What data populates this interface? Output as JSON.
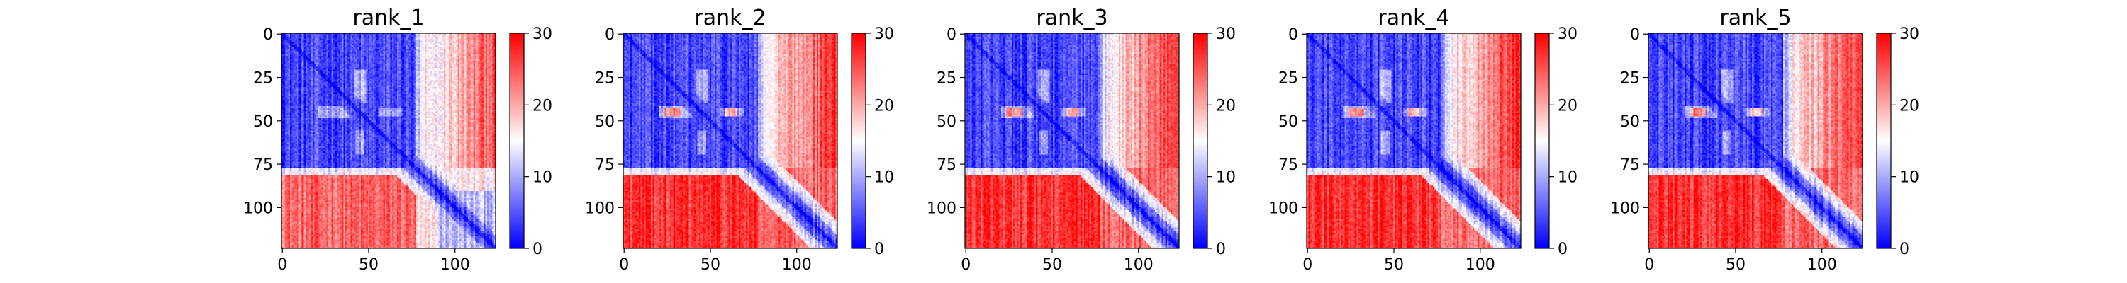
{
  "figure": {
    "panels_count": 5
  },
  "chart_data": [
    {
      "type": "heatmap",
      "title": "rank_1",
      "xlabel": "",
      "ylabel": "",
      "x_ticks": [
        0,
        50,
        100
      ],
      "y_ticks": [
        0,
        25,
        50,
        75,
        100
      ],
      "xlim": [
        0,
        124
      ],
      "ylim": [
        124,
        0
      ],
      "colorbar": {
        "min": 0,
        "max": 30,
        "ticks": [
          0,
          10,
          20,
          30
        ],
        "colormap": "bwr"
      },
      "colors": {
        "low": "#0000ff",
        "mid": "#ffffff",
        "high": "#ff0000"
      },
      "matrix_size": 124,
      "segment_bounds": [
        0,
        45,
        78,
        124
      ],
      "values_description": "Predicted aligned error matrix; blue near-diagonal blocks (0-78), red off-diagonal beyond residue ~80"
    },
    {
      "type": "heatmap",
      "title": "rank_2",
      "xlabel": "",
      "ylabel": "",
      "x_ticks": [
        0,
        50,
        100
      ],
      "y_ticks": [
        0,
        25,
        50,
        75,
        100
      ],
      "xlim": [
        0,
        124
      ],
      "ylim": [
        124,
        0
      ],
      "colorbar": {
        "min": 0,
        "max": 30,
        "ticks": [
          0,
          10,
          20,
          30
        ],
        "colormap": "bwr"
      },
      "colors": {
        "low": "#0000ff",
        "mid": "#ffffff",
        "high": "#ff0000"
      },
      "matrix_size": 124,
      "segment_bounds": [
        0,
        45,
        78,
        124
      ]
    },
    {
      "type": "heatmap",
      "title": "rank_3",
      "xlabel": "",
      "ylabel": "",
      "x_ticks": [
        0,
        50,
        100
      ],
      "y_ticks": [
        0,
        25,
        50,
        75,
        100
      ],
      "xlim": [
        0,
        124
      ],
      "ylim": [
        124,
        0
      ],
      "colorbar": {
        "min": 0,
        "max": 30,
        "ticks": [
          0,
          10,
          20,
          30
        ],
        "colormap": "bwr"
      },
      "colors": {
        "low": "#0000ff",
        "mid": "#ffffff",
        "high": "#ff0000"
      },
      "matrix_size": 124,
      "segment_bounds": [
        0,
        45,
        78,
        124
      ]
    },
    {
      "type": "heatmap",
      "title": "rank_4",
      "xlabel": "",
      "ylabel": "",
      "x_ticks": [
        0,
        50,
        100
      ],
      "y_ticks": [
        0,
        25,
        50,
        75,
        100
      ],
      "xlim": [
        0,
        124
      ],
      "ylim": [
        124,
        0
      ],
      "colorbar": {
        "min": 0,
        "max": 30,
        "ticks": [
          0,
          10,
          20,
          30
        ],
        "colormap": "bwr"
      },
      "colors": {
        "low": "#0000ff",
        "mid": "#ffffff",
        "high": "#ff0000"
      },
      "matrix_size": 124,
      "segment_bounds": [
        0,
        45,
        78,
        124
      ]
    },
    {
      "type": "heatmap",
      "title": "rank_5",
      "xlabel": "",
      "ylabel": "",
      "x_ticks": [
        0,
        50,
        100
      ],
      "y_ticks": [
        0,
        25,
        50,
        75,
        100
      ],
      "xlim": [
        0,
        124
      ],
      "ylim": [
        124,
        0
      ],
      "colorbar": {
        "min": 0,
        "max": 30,
        "ticks": [
          0,
          10,
          20,
          30
        ],
        "colormap": "bwr"
      },
      "colors": {
        "low": "#0000ff",
        "mid": "#ffffff",
        "high": "#ff0000"
      },
      "matrix_size": 124,
      "segment_bounds": [
        0,
        45,
        78,
        124
      ]
    }
  ]
}
